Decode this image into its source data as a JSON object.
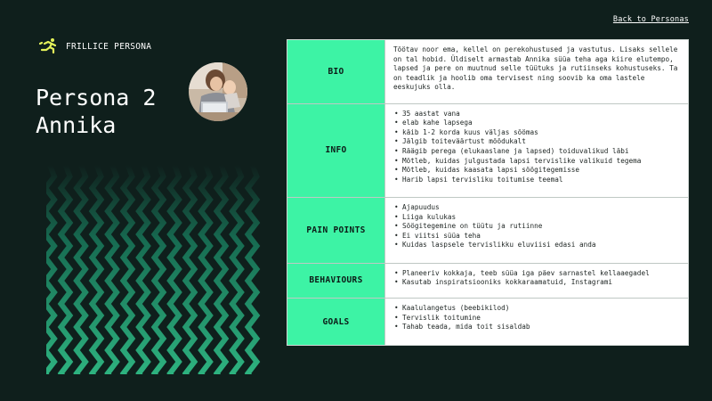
{
  "header": {
    "back_link": "Back to Personas",
    "brand_name": "FRILLICE PERSONA",
    "brand_icon": "running-person-icon",
    "accent_color": "#3df3a5"
  },
  "persona": {
    "title_line1": "Persona 2",
    "title_line2": "Annika",
    "avatar_icon": "persona-photo"
  },
  "table": {
    "rows": [
      {
        "label": "BIO",
        "text": "Töötav noor ema, kellel on perekohustused ja vastutus. Lisaks sellele on tal hobid. Üldiselt armastab Annika süüa teha aga kiire elutempo, lapsed ja pere on muutnud selle tüütuks ja rutiinseks kohustuseks. Ta on teadlik ja hoolib oma tervisest ning soovib ka oma lastele eeskujuks olla."
      },
      {
        "label": "INFO",
        "items": [
          "35 aastat vana",
          "elab kahe lapsega",
          "käib 1-2 korda kuus väljas söömas",
          "Jälgib toiteväärtust mõõdukalt",
          "Räägib perega (elukaaslane ja lapsed) toiduvalikud läbi",
          "Mõtleb, kuidas julgustada lapsi tervislike valikuid tegema",
          "Mõtleb, kuidas kaasata lapsi söögitegemisse",
          "Harib lapsi tervisliku toitumise teemal"
        ]
      },
      {
        "label": "PAIN POINTS",
        "items": [
          "Ajapuudus",
          "Liiga kulukas",
          "Söögitegemine on tüütu ja rutiinne",
          "Ei viitsi süüa teha",
          "Kuidas laspsele tervislikku eluviisi edasi anda"
        ]
      },
      {
        "label": "BEHAVIOURS",
        "items": [
          "Planeeriv kokkaja, teeb süüa iga päev sarnastel kellaaegadel",
          "Kasutab inspiratsiooniks kokkaraamatuid, Instagrami"
        ]
      },
      {
        "label": "GOALS",
        "items": [
          "Kaalulangetus (beebikilod)",
          "Tervislik toitumine",
          "Tahab teada, mida toit sisaldab"
        ]
      }
    ]
  }
}
